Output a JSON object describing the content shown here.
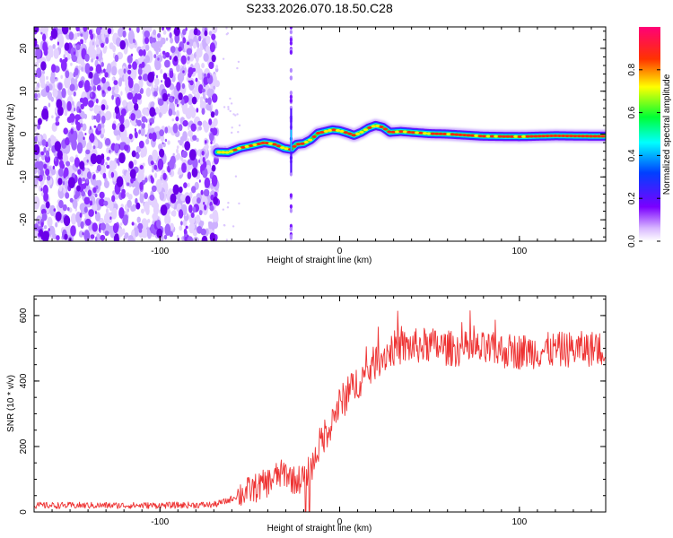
{
  "title": "S233.2026.070.18.50.C28",
  "chart_data": [
    {
      "type": "heatmap",
      "name": "spectrogram",
      "xlabel": "Height of straight line (km)",
      "ylabel": "Frequency (Hz)",
      "xlim": [
        -170,
        148
      ],
      "ylim": [
        -25,
        25
      ],
      "xticks": [
        -100,
        0,
        100
      ],
      "yticks": [
        -20,
        -10,
        0,
        10,
        20
      ],
      "noise_region_xmax": -68,
      "signal_track": {
        "x": [
          -68,
          -62,
          -55,
          -48,
          -42,
          -36,
          -31,
          -27,
          -24,
          -20,
          -16,
          -12,
          -8,
          -4,
          0,
          4,
          8,
          12,
          16,
          20,
          24,
          28,
          34,
          40,
          50,
          60,
          80,
          100,
          120,
          140,
          148
        ],
        "y": [
          -4.2,
          -4.3,
          -3.2,
          -2.6,
          -2.0,
          -2.4,
          -3.3,
          -3.6,
          -2.4,
          -2.2,
          -1.3,
          0.2,
          0.6,
          1.0,
          0.8,
          0.3,
          -0.3,
          0.4,
          1.4,
          2.0,
          1.6,
          0.4,
          0.6,
          0.4,
          0.1,
          0.0,
          -0.5,
          -0.6,
          -0.4,
          -0.5,
          -0.5
        ]
      },
      "colorbar": {
        "label": "Normalized spectral amplitude",
        "range": [
          0.0,
          1.0
        ],
        "ticks": [
          "0.0",
          "0.2",
          "0.4",
          "0.6",
          "0.8"
        ]
      }
    },
    {
      "type": "line",
      "name": "snr",
      "xlabel": "Height of straight line (km)",
      "ylabel": "SNR (10 * v/v)",
      "xlim": [
        -170,
        148
      ],
      "ylim": [
        0,
        660
      ],
      "xticks": [
        -100,
        0,
        100
      ],
      "yticks": [
        0,
        200,
        400,
        600
      ],
      "color": "#ee3333",
      "series": [
        {
          "name": "SNR",
          "x": [
            -170,
            -100,
            -70,
            -62,
            -55,
            -48,
            -40,
            -35,
            -30,
            -25,
            -20,
            -15,
            -10,
            -5,
            0,
            5,
            10,
            15,
            20,
            25,
            30,
            40,
            50,
            60,
            80,
            100,
            120,
            148
          ],
          "y": [
            20,
            20,
            22,
            35,
            55,
            70,
            90,
            110,
            120,
            95,
            105,
            145,
            220,
            270,
            330,
            360,
            400,
            420,
            460,
            480,
            500,
            505,
            510,
            500,
            495,
            490,
            495,
            500
          ]
        }
      ],
      "dropouts": [
        {
          "x": -19,
          "min": 0
        },
        {
          "x": -17,
          "min": 0
        }
      ]
    }
  ]
}
